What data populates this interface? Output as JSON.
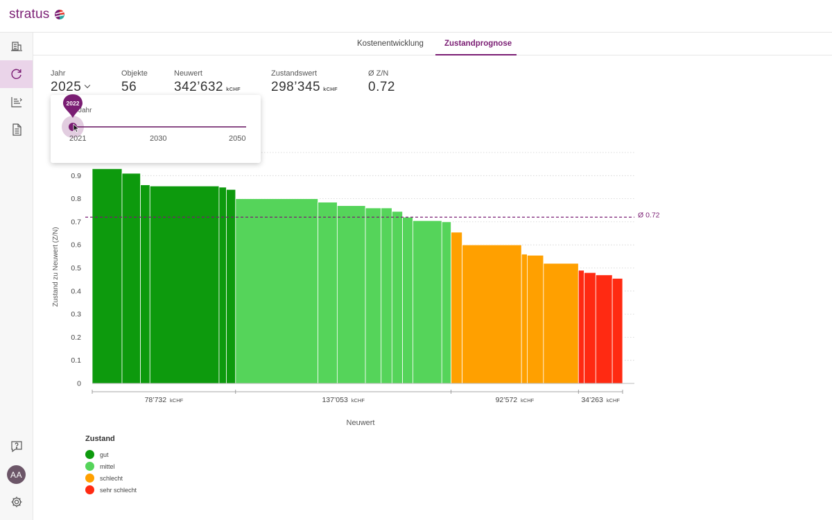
{
  "app": {
    "name": "stratus"
  },
  "sidebar": {
    "items": [
      {
        "name": "portfolio",
        "icon": "buildings-icon",
        "active": false
      },
      {
        "name": "prognose",
        "icon": "refresh-cycle-icon",
        "active": true
      },
      {
        "name": "analysis",
        "icon": "sort-list-icon",
        "active": false
      },
      {
        "name": "reports",
        "icon": "document-icon",
        "active": false
      }
    ],
    "help_icon": "help-icon",
    "settings_icon": "gear-icon",
    "avatar_initials": "AA"
  },
  "tabs": [
    {
      "label": "Kostenentwicklung",
      "active": false
    },
    {
      "label": "Zustandprognose",
      "active": true
    }
  ],
  "kpis": {
    "year": {
      "label": "Jahr",
      "value": "2025"
    },
    "objects": {
      "label": "Objekte",
      "value": "56"
    },
    "neuwert": {
      "label": "Neuwert",
      "value": "342’632",
      "unit": "kCHF"
    },
    "zustandswert": {
      "label": "Zustandswert",
      "value": "298’345",
      "unit": "kCHF"
    },
    "zn": {
      "label": "Ø Z/N",
      "value": "0.72"
    }
  },
  "year_slider": {
    "label": "Jahr",
    "value": "2022",
    "ticks": [
      "2021",
      "2030",
      "2050"
    ],
    "min": 2021,
    "max": 2050,
    "current": 2022
  },
  "chart_data": {
    "type": "bar",
    "ylabel": "Zustand zu Neuwert (Z/N)",
    "xlabel": "Neuwert",
    "ylim": [
      0,
      1
    ],
    "yticks": [
      "0",
      "0.1",
      "0.2",
      "0.3",
      "0.4",
      "0.5",
      "0.6",
      "0.7",
      "0.8",
      "0.9"
    ],
    "average": {
      "value": 0.72,
      "label": "Ø 0.72"
    },
    "unit": "kCHF",
    "colors": {
      "gut": "#0d9a0d",
      "mittel": "#55d45a",
      "schlecht": "#ffa000",
      "sehr schlecht": "#ff2a12"
    },
    "bars": [
      {
        "category": "gut",
        "neuwert": 11000,
        "zn": 0.93
      },
      {
        "category": "gut",
        "neuwert": 6800,
        "zn": 0.91
      },
      {
        "category": "gut",
        "neuwert": 3500,
        "zn": 0.86
      },
      {
        "category": "gut",
        "neuwert": 25500,
        "zn": 0.855
      },
      {
        "category": "gut",
        "neuwert": 2700,
        "zn": 0.85
      },
      {
        "category": "gut",
        "neuwert": 3400,
        "zn": 0.84
      },
      {
        "category": "mittel",
        "neuwert": 30400,
        "zn": 0.8
      },
      {
        "category": "mittel",
        "neuwert": 7100,
        "zn": 0.785
      },
      {
        "category": "mittel",
        "neuwert": 10400,
        "zn": 0.77
      },
      {
        "category": "mittel",
        "neuwert": 5800,
        "zn": 0.76
      },
      {
        "category": "mittel",
        "neuwert": 4000,
        "zn": 0.76
      },
      {
        "category": "mittel",
        "neuwert": 3900,
        "zn": 0.745
      },
      {
        "category": "mittel",
        "neuwert": 3800,
        "zn": 0.72
      },
      {
        "category": "mittel",
        "neuwert": 10700,
        "zn": 0.705
      },
      {
        "category": "mittel",
        "neuwert": 3400,
        "zn": 0.7
      },
      {
        "category": "schlecht",
        "neuwert": 4100,
        "zn": 0.655
      },
      {
        "category": "schlecht",
        "neuwert": 21900,
        "zn": 0.6
      },
      {
        "category": "schlecht",
        "neuwert": 2100,
        "zn": 0.56
      },
      {
        "category": "schlecht",
        "neuwert": 6000,
        "zn": 0.555
      },
      {
        "category": "schlecht",
        "neuwert": 12900,
        "zn": 0.52
      },
      {
        "category": "sehr schlecht",
        "neuwert": 2100,
        "zn": 0.49
      },
      {
        "category": "sehr schlecht",
        "neuwert": 4300,
        "zn": 0.48
      },
      {
        "category": "sehr schlecht",
        "neuwert": 6100,
        "zn": 0.47
      },
      {
        "category": "sehr schlecht",
        "neuwert": 3800,
        "zn": 0.455
      }
    ],
    "groups": [
      {
        "category": "gut",
        "total": 78732,
        "label": "78’732"
      },
      {
        "category": "mittel",
        "total": 137053,
        "label": "137’053"
      },
      {
        "category": "schlecht",
        "total": 92572,
        "label": "92’572"
      },
      {
        "category": "sehr schlecht",
        "total": 34263,
        "label": "34’263"
      }
    ]
  },
  "legend": {
    "title": "Zustand",
    "items": [
      {
        "label": "gut",
        "color": "#0d9a0d"
      },
      {
        "label": "mittel",
        "color": "#55d45a"
      },
      {
        "label": "schlecht",
        "color": "#ffa000"
      },
      {
        "label": "sehr schlecht",
        "color": "#ff2a12"
      }
    ]
  }
}
